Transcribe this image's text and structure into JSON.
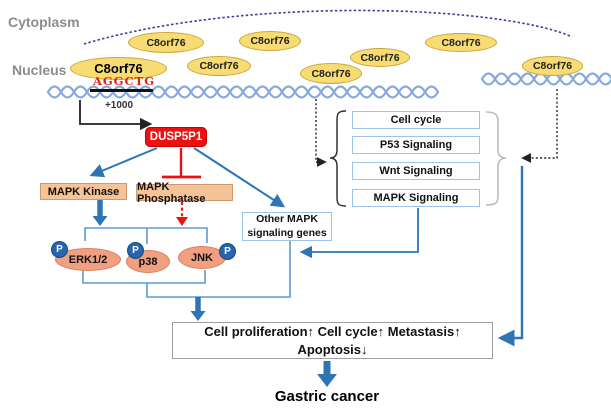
{
  "figure": {
    "regions": {
      "cytoplasm": "Cytoplasm",
      "nucleus": "Nucleus"
    },
    "molecule": "C8orf76",
    "promoter": {
      "site": "AGGCTG",
      "position": "+1000"
    },
    "pseudogene": "DUSP5P1",
    "nodes": {
      "mapk_kinase": "MAPK Kinase",
      "mapk_phosphatase": "MAPK Phosphatase",
      "erk": "ERK1/2",
      "p38": "p38",
      "jnk": "JNK",
      "phospho": "P",
      "other_mapk": [
        "Other MAPK",
        "signaling genes"
      ]
    },
    "pathways": [
      "Cell cycle",
      "P53 Signaling",
      "Wnt Signaling",
      "MAPK Signaling"
    ],
    "outcomes": {
      "line1": "Cell proliferation↑ Cell cycle↑ Metastasis↑",
      "line2": "Apoptosis↓"
    },
    "disease": "Gastric cancer",
    "colors": {
      "accent_blue": "#2E75B6",
      "bracket_blue": "#5B9BD5",
      "light_blue_border": "#9DC3E6",
      "dna_blue": "#84A9DA",
      "yellow_fill": "#F6DC72",
      "salmon_box": "#F5C396",
      "salmon_ellipse": "#F0A080",
      "red": "#EE1111",
      "phospho_blue": "#2766AE",
      "gray_label": "#8C8C8C"
    }
  }
}
